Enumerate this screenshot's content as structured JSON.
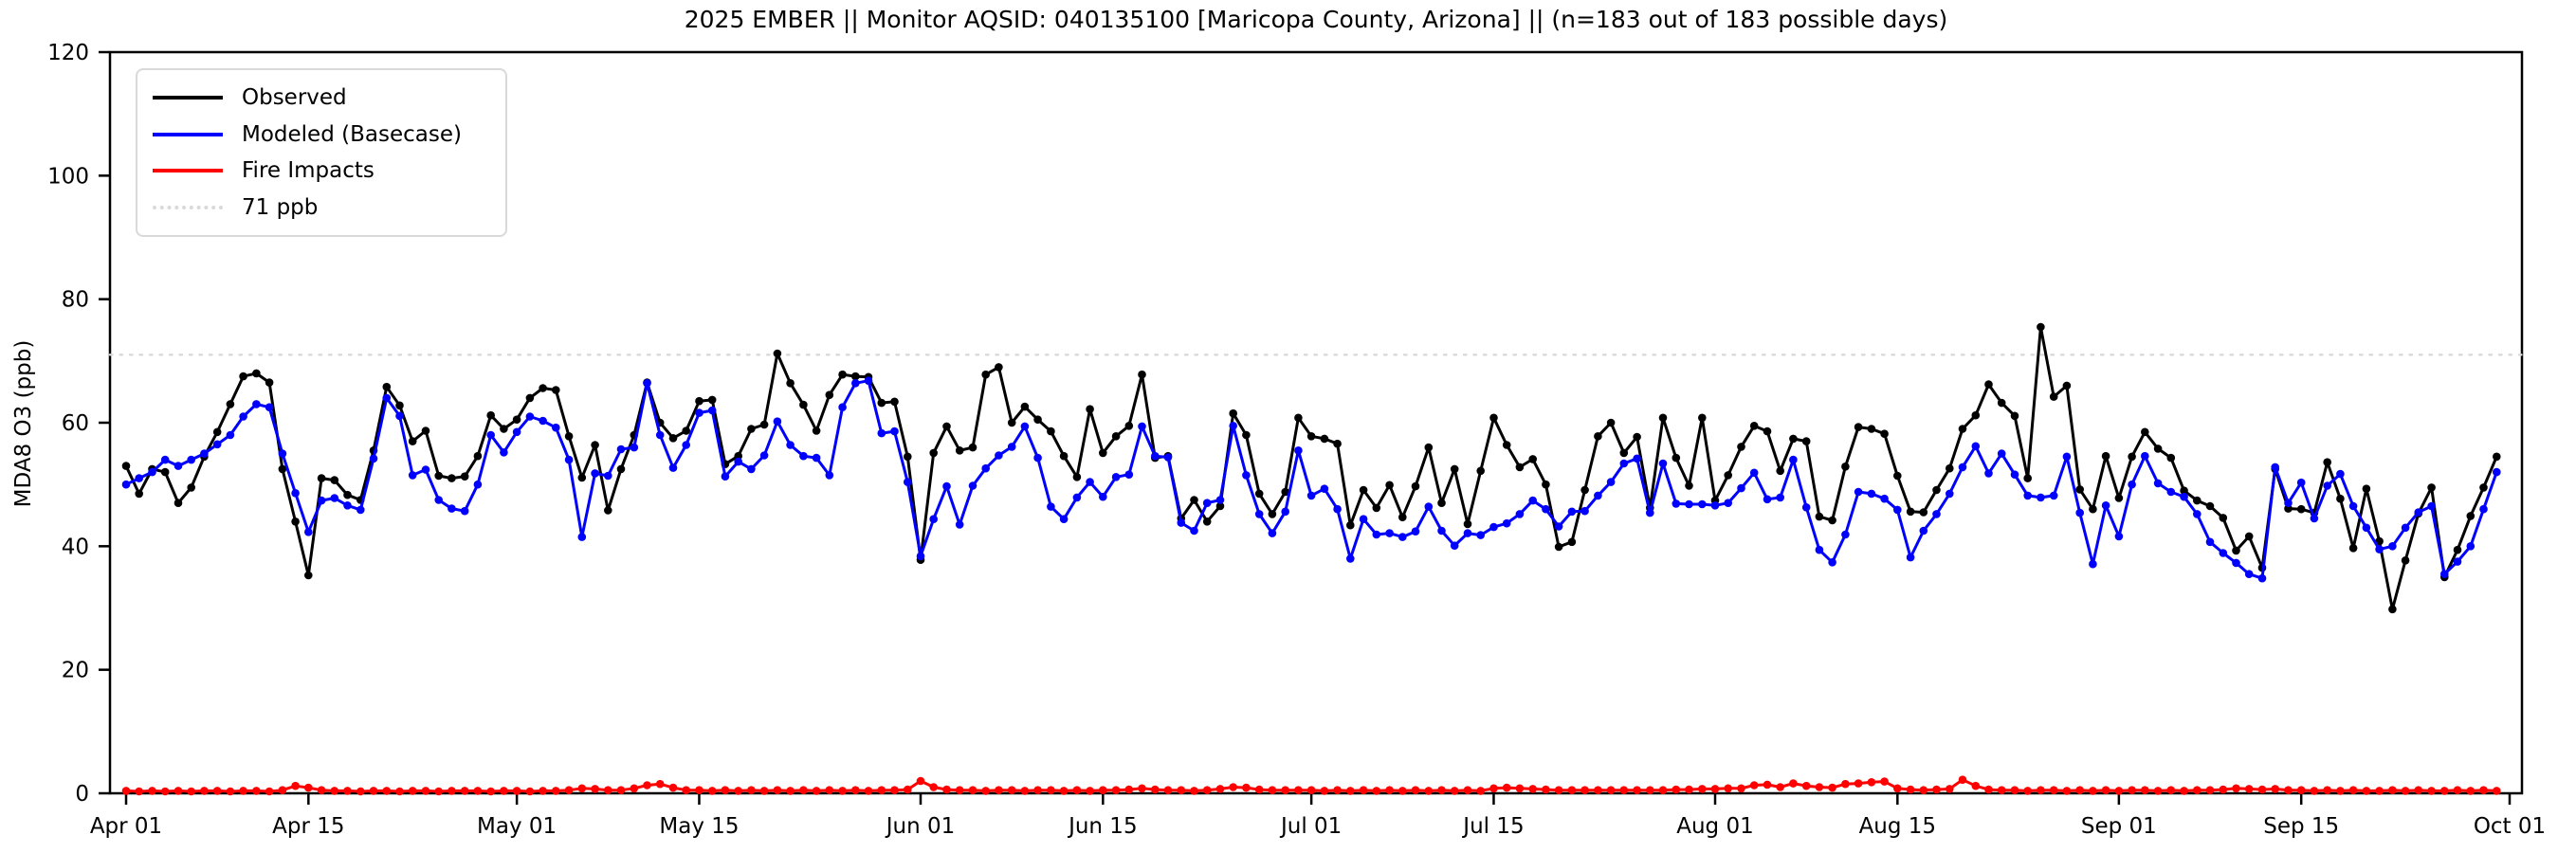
{
  "figure": {
    "title": "2025 EMBER || Monitor AQSID: 040135100 [Maricopa County, Arizona] || (n=183 out of 183 possible days)"
  },
  "axes": {
    "ylabel": "MDA8 O3 (ppb)",
    "ylim": [
      0,
      120
    ],
    "yticks": [
      0,
      20,
      40,
      60,
      80,
      100,
      120
    ],
    "xticks": [
      {
        "label": "Apr 01",
        "day": 0
      },
      {
        "label": "Apr 15",
        "day": 14
      },
      {
        "label": "May 01",
        "day": 30
      },
      {
        "label": "May 15",
        "day": 44
      },
      {
        "label": "Jun 01",
        "day": 61
      },
      {
        "label": "Jun 15",
        "day": 75
      },
      {
        "label": "Jul 01",
        "day": 91
      },
      {
        "label": "Jul 15",
        "day": 105
      },
      {
        "label": "Aug 01",
        "day": 122
      },
      {
        "label": "Aug 15",
        "day": 136
      },
      {
        "label": "Sep 01",
        "day": 153
      },
      {
        "label": "Sep 15",
        "day": 167
      },
      {
        "label": "Oct 01",
        "day": 183
      }
    ]
  },
  "legend": {
    "items": [
      {
        "label": "Observed",
        "color": "#000000",
        "style": "solid"
      },
      {
        "label": "Modeled (Basecase)",
        "color": "#0000ff",
        "style": "solid"
      },
      {
        "label": "Fire Impacts",
        "color": "#ff0000",
        "style": "solid"
      },
      {
        "label": "71 ppb",
        "color": "#d9d9d9",
        "style": "dotted"
      }
    ]
  },
  "chart_data": {
    "type": "line",
    "title": "2025 EMBER || Monitor AQSID: 040135100 [Maricopa County, Arizona] || (n=183 out of 183 possible days)",
    "xlabel": "",
    "ylabel": "MDA8 O3 (ppb)",
    "ylim": [
      0,
      120
    ],
    "x_description": "daily values, day index 0 = Apr 01, day 182 = Sep 30 (183 days)",
    "n_points": 183,
    "threshold": {
      "value": 71,
      "label": "71 ppb",
      "color": "#d9d9d9"
    },
    "legend_position": "upper left",
    "grid": false,
    "series": [
      {
        "name": "Observed",
        "color": "#000000",
        "marker": "circle",
        "values": [
          53,
          48.5,
          52.5,
          52,
          47,
          49.5,
          54.5,
          58.5,
          63,
          67.5,
          68,
          66.5,
          52.5,
          44,
          35.3,
          51,
          50.7,
          48.3,
          47.5,
          55.5,
          65.8,
          62.8,
          57,
          58.7,
          51.4,
          51,
          51.3,
          54.6,
          61.2,
          59,
          60.5,
          64,
          65.6,
          65.3,
          57.8,
          51.1,
          56.4,
          45.8,
          52.5,
          58,
          66.5,
          60,
          57.5,
          58.7,
          63.5,
          63.7,
          53.3,
          54.6,
          59,
          59.7,
          71.2,
          66.4,
          62.9,
          58.7,
          64.5,
          67.8,
          67.5,
          67.4,
          63.2,
          63.4,
          54.5,
          37.8,
          55.1,
          59.4,
          55.5,
          56,
          67.8,
          69,
          60,
          62.6,
          60.5,
          58.6,
          54.6,
          51.2,
          62.2,
          55.1,
          57.8,
          59.5,
          67.8,
          54.3,
          54.6,
          44.5,
          47.5,
          44,
          46.5,
          61.5,
          58,
          48.5,
          45.2,
          48.8,
          60.8,
          57.8,
          57.4,
          56.6,
          43.4,
          49.1,
          46.2,
          49.9,
          44.7,
          49.7,
          56,
          47,
          52.5,
          43.6,
          52.2,
          60.8,
          56.4,
          52.8,
          54.1,
          50,
          39.9,
          40.7,
          49.1,
          57.8,
          60,
          55.1,
          57.7,
          46.2,
          60.8,
          54.3,
          49.8,
          60.8,
          47.4,
          51.5,
          56.1,
          59.5,
          58.6,
          52.2,
          57.4,
          57,
          44.8,
          44.2,
          52.9,
          59.3,
          59,
          58.2,
          51.4,
          45.6,
          45.5,
          49.1,
          52.6,
          59,
          61.2,
          66.2,
          63.2,
          61.1,
          51,
          75.5,
          64.2,
          66,
          49.2,
          46,
          54.6,
          47.8,
          54.5,
          58.5,
          55.8,
          54.3,
          49,
          47.4,
          46.5,
          44.6,
          39.3,
          41.6,
          36.5,
          52.5,
          46.1,
          46,
          45.4,
          53.6,
          47.7,
          39.7,
          49.3,
          40.8,
          29.8,
          37.7,
          45.3,
          49.5,
          35,
          39.4,
          44.9,
          49.5,
          54.5
        ]
      },
      {
        "name": "Modeled (Basecase)",
        "color": "#0000ff",
        "marker": "circle",
        "values": [
          50,
          51,
          52,
          54,
          53,
          54,
          55,
          56.5,
          58,
          61,
          63,
          62.5,
          55,
          48.6,
          42.3,
          47.4,
          47.8,
          46.6,
          45.9,
          54.2,
          64,
          61.1,
          51.5,
          52.4,
          47.5,
          46.1,
          45.7,
          50,
          58,
          55.2,
          58.5,
          61,
          60.3,
          59.2,
          54,
          41.5,
          51.8,
          51.4,
          55.7,
          56,
          66.4,
          58,
          52.7,
          56.4,
          61.6,
          62,
          51.3,
          53.7,
          52.5,
          54.7,
          60.2,
          56.4,
          54.6,
          54.3,
          51.5,
          62.5,
          66.4,
          66.8,
          58.3,
          58.6,
          50.4,
          38.4,
          44.4,
          49.7,
          43.5,
          49.8,
          52.6,
          54.7,
          56.1,
          59.4,
          54.3,
          46.4,
          44.4,
          47.9,
          50.4,
          48,
          51.2,
          51.6,
          59.4,
          54.6,
          54.4,
          43.8,
          42.5,
          47,
          47.5,
          59.5,
          51.5,
          45.2,
          42.1,
          45.6,
          55.5,
          48.2,
          49.3,
          46,
          38,
          44.4,
          41.9,
          42.1,
          41.5,
          42.4,
          46.4,
          42.5,
          40.1,
          42.1,
          41.8,
          43.1,
          43.7,
          45.2,
          47.4,
          46,
          43.2,
          45.6,
          45.7,
          48.2,
          50.4,
          53.4,
          54.2,
          45.4,
          53.4,
          46.9,
          46.8,
          46.8,
          46.6,
          47,
          49.4,
          51.9,
          47.6,
          47.9,
          54,
          46.3,
          39.4,
          37.4,
          41.9,
          48.8,
          48.5,
          47.7,
          45.9,
          38.2,
          42.5,
          45.2,
          48.5,
          52.8,
          56.2,
          51.8,
          55,
          51.6,
          48.2,
          47.9,
          48.2,
          54.5,
          45.4,
          37.1,
          46.6,
          41.6,
          50,
          54.6,
          50.2,
          48.8,
          48,
          45.2,
          40.7,
          38.9,
          37.3,
          35.5,
          34.8,
          52.8,
          47,
          50.3,
          44.5,
          49.8,
          51.7,
          46.5,
          43,
          39.5,
          40,
          43,
          45.5,
          46.5,
          35.5,
          37.5,
          40,
          46,
          52
        ]
      },
      {
        "name": "Fire Impacts",
        "color": "#ff0000",
        "marker": "circle",
        "values": [
          0.4,
          0.3,
          0.4,
          0.3,
          0.4,
          0.3,
          0.4,
          0.4,
          0.3,
          0.4,
          0.4,
          0.3,
          0.5,
          1.2,
          0.9,
          0.5,
          0.4,
          0.4,
          0.3,
          0.4,
          0.4,
          0.3,
          0.4,
          0.4,
          0.3,
          0.4,
          0.4,
          0.4,
          0.3,
          0.4,
          0.4,
          0.3,
          0.4,
          0.4,
          0.5,
          0.8,
          0.7,
          0.5,
          0.5,
          0.8,
          1.3,
          1.5,
          0.9,
          0.5,
          0.5,
          0.4,
          0.5,
          0.4,
          0.5,
          0.4,
          0.5,
          0.4,
          0.5,
          0.4,
          0.5,
          0.4,
          0.5,
          0.4,
          0.5,
          0.5,
          0.6,
          2,
          1,
          0.6,
          0.5,
          0.5,
          0.4,
          0.5,
          0.5,
          0.4,
          0.5,
          0.5,
          0.4,
          0.5,
          0.4,
          0.5,
          0.5,
          0.6,
          0.8,
          0.6,
          0.5,
          0.5,
          0.4,
          0.5,
          0.7,
          1,
          0.9,
          0.6,
          0.5,
          0.5,
          0.5,
          0.5,
          0.4,
          0.5,
          0.4,
          0.5,
          0.4,
          0.5,
          0.4,
          0.5,
          0.4,
          0.5,
          0.4,
          0.5,
          0.4,
          0.8,
          0.9,
          0.8,
          0.7,
          0.6,
          0.5,
          0.5,
          0.5,
          0.5,
          0.5,
          0.5,
          0.5,
          0.5,
          0.5,
          0.6,
          0.6,
          0.7,
          0.7,
          0.8,
          0.8,
          1.3,
          1.4,
          1,
          1.6,
          1.2,
          1,
          0.9,
          1.5,
          1.6,
          1.8,
          1.9,
          0.8,
          0.6,
          0.5,
          0.6,
          0.7,
          2.2,
          1.2,
          0.6,
          0.5,
          0.5,
          0.4,
          0.5,
          0.5,
          0.4,
          0.5,
          0.4,
          0.5,
          0.4,
          0.5,
          0.5,
          0.4,
          0.5,
          0.4,
          0.5,
          0.5,
          0.6,
          0.8,
          0.7,
          0.6,
          0.7,
          0.5,
          0.5,
          0.4,
          0.5,
          0.4,
          0.5,
          0.4,
          0.4,
          0.5,
          0.4,
          0.5,
          0.4,
          0.4,
          0.5,
          0.4,
          0.5,
          0.4
        ]
      }
    ]
  }
}
